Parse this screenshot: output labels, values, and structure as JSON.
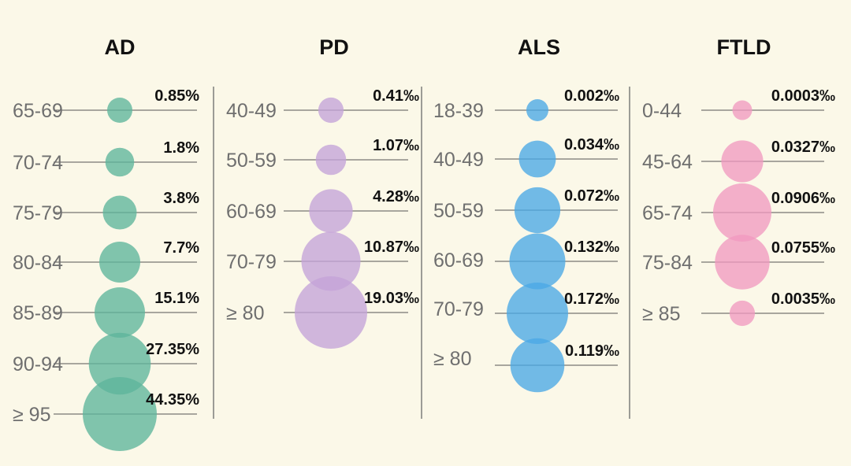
{
  "chart_data": [
    {
      "type": "bubble",
      "title": "AD",
      "color": "#5db59b",
      "categories": [
        "65-69",
        "70-74",
        "75-79",
        "80-84",
        "85-89",
        "90-94",
        "≥ 95"
      ],
      "values": [
        0.85,
        1.8,
        3.8,
        7.7,
        15.1,
        27.35,
        44.35
      ],
      "unit": "%",
      "labels": [
        "0.85%",
        "1.8%",
        "3.8%",
        "7.7%",
        "15.1%",
        "27.35%",
        "44.35%"
      ]
    },
    {
      "type": "bubble",
      "title": "PD",
      "color": "#c4a3d9",
      "categories": [
        "40-49",
        "50-59",
        "60-69",
        "70-79",
        "≥ 80"
      ],
      "values": [
        0.41,
        1.07,
        4.28,
        10.87,
        19.03
      ],
      "unit": "‰",
      "labels": [
        "0.41‰",
        "1.07‰",
        "4.28‰",
        "10.87‰",
        "19.03‰"
      ]
    },
    {
      "type": "bubble",
      "title": "ALS",
      "color": "#4aa8e6",
      "categories": [
        "18-39",
        "40-49",
        "50-59",
        "60-69",
        "70-79",
        "≥ 80"
      ],
      "values": [
        0.002,
        0.034,
        0.072,
        0.132,
        0.172,
        0.119
      ],
      "unit": "‰",
      "labels": [
        "0.002‰",
        "0.034‰",
        "0.072‰",
        "0.132‰",
        "0.172‰",
        "0.119‰"
      ]
    },
    {
      "type": "bubble",
      "title": "FTLD",
      "color": "#f19ac0",
      "categories": [
        "0-44",
        "45-64",
        "65-74",
        "75-84",
        "≥ 85"
      ],
      "values": [
        0.0003,
        0.0327,
        0.0906,
        0.0755,
        0.0035
      ],
      "unit": "‰",
      "labels": [
        "0.0003‰",
        "0.0327‰",
        "0.0906‰",
        "0.0755‰",
        "0.0035‰"
      ]
    }
  ]
}
